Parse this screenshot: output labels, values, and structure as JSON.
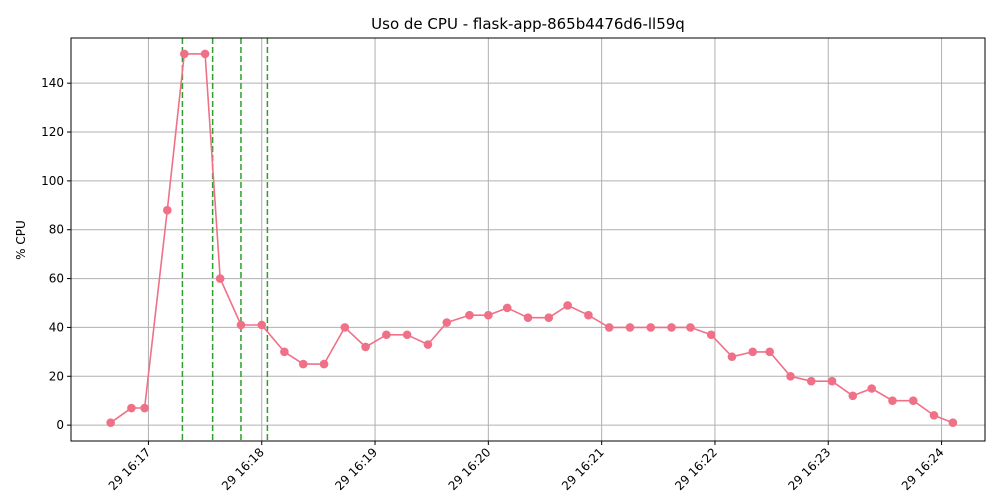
{
  "chart_data": {
    "type": "line",
    "title": "Uso de CPU - flask-app-865b4476d6-ll59q",
    "xlabel": "",
    "ylabel": "% CPU",
    "x_unit": "minutes",
    "xlim": [
      "16:16:19",
      "16:24:23"
    ],
    "ylim": [
      -6.5,
      158.5
    ],
    "y_ticks": [
      0,
      20,
      40,
      60,
      80,
      100,
      120,
      140
    ],
    "x_ticks": [
      {
        "label": "29 16:17",
        "time": "16:17"
      },
      {
        "label": "29 16:18",
        "time": "16:18"
      },
      {
        "label": "29 16:19",
        "time": "16:19"
      },
      {
        "label": "29 16:20",
        "time": "16:20"
      },
      {
        "label": "29 16:21",
        "time": "16:21"
      },
      {
        "label": "29 16:22",
        "time": "16:22"
      },
      {
        "label": "29 16:23",
        "time": "16:23"
      },
      {
        "label": "29 16:24",
        "time": "16:24"
      }
    ],
    "grid": true,
    "series": [
      {
        "color": "#f07088",
        "x": [
          "16:16:40",
          "16:16:51",
          "16:16:58",
          "16:17:10",
          "16:17:19",
          "16:17:30",
          "16:17:38",
          "16:17:49",
          "16:18:00",
          "16:18:12",
          "16:18:22",
          "16:18:33",
          "16:18:44",
          "16:18:55",
          "16:19:06",
          "16:19:17",
          "16:19:28",
          "16:19:38",
          "16:19:50",
          "16:20:00",
          "16:20:10",
          "16:20:21",
          "16:20:32",
          "16:20:42",
          "16:20:53",
          "16:21:04",
          "16:21:15",
          "16:21:26",
          "16:21:37",
          "16:21:47",
          "16:21:58",
          "16:22:09",
          "16:22:20",
          "16:22:29",
          "16:22:40",
          "16:22:51",
          "16:23:02",
          "16:23:13",
          "16:23:23",
          "16:23:34",
          "16:23:45",
          "16:23:56",
          "16:24:06"
        ],
        "y": [
          1,
          7,
          7,
          88,
          152,
          152,
          60,
          41,
          41,
          30,
          25,
          25,
          40,
          32,
          37,
          37,
          33,
          42,
          45,
          45,
          48,
          44,
          44,
          49,
          45,
          40,
          40,
          40,
          40,
          40,
          37,
          28,
          30,
          30,
          20,
          18,
          18,
          12,
          15,
          10,
          10,
          4,
          1
        ]
      }
    ],
    "vlines": {
      "color": "#2ca02c",
      "style": "dashed",
      "x": [
        "16:17:18",
        "16:17:34",
        "16:17:49",
        "16:18:03"
      ]
    }
  }
}
